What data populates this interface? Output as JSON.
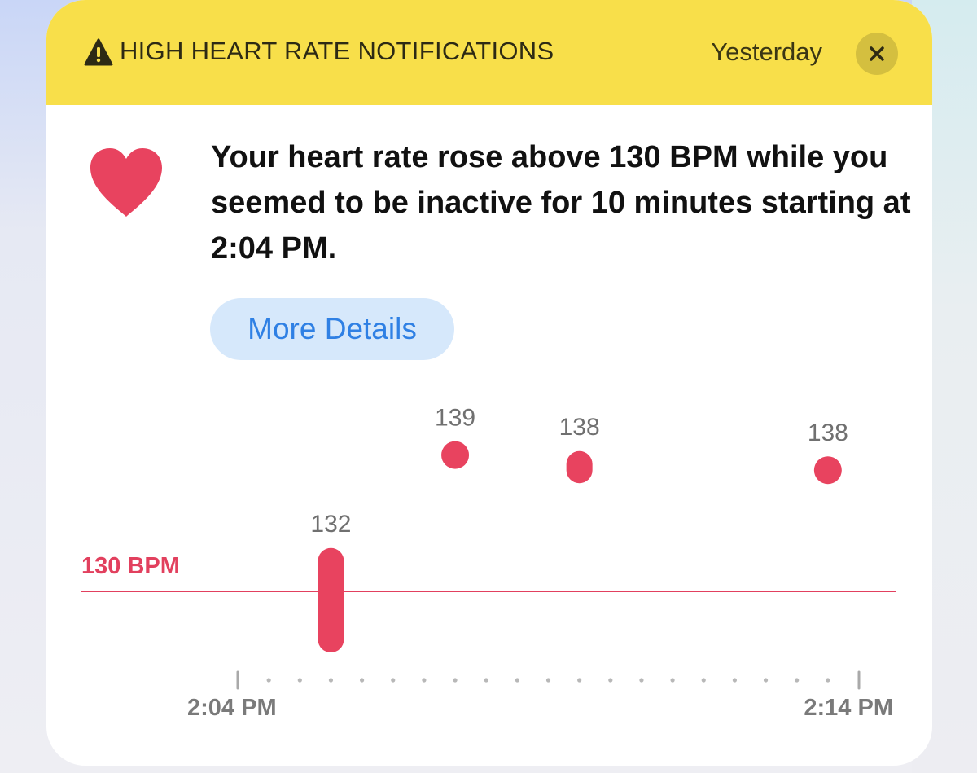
{
  "notification": {
    "title": "HIGH HEART RATE NOTIFICATIONS",
    "time": "Yesterday",
    "message": "Your heart rate rose above 130 BPM while you seemed to be inactive for 10 minutes starting at 2:04 PM.",
    "more_details_label": "More Details",
    "icons": {
      "warning": "warning-triangle-icon",
      "close": "close-icon",
      "heart": "heart-icon"
    },
    "colors": {
      "header": "#f8df4a",
      "accent": "#e8435f",
      "button_bg": "#d6e8fb",
      "button_text": "#2f80e4"
    }
  },
  "chart_data": {
    "type": "scatter",
    "title": "",
    "xlabel": "",
    "ylabel": "",
    "x_ticks": [
      "2:04 PM",
      "2:14 PM"
    ],
    "x_range_minutes": [
      0,
      10
    ],
    "threshold": {
      "value": 130,
      "label": "130 BPM"
    },
    "points": [
      {
        "minute": 1.5,
        "min": 130,
        "max": 132,
        "label": "132"
      },
      {
        "minute": 3.5,
        "min": 139,
        "max": 139,
        "label": "139"
      },
      {
        "minute": 5.5,
        "min": 138,
        "max": 138.4,
        "label": "138"
      },
      {
        "minute": 9.5,
        "min": 138,
        "max": 138,
        "label": "138"
      }
    ]
  }
}
